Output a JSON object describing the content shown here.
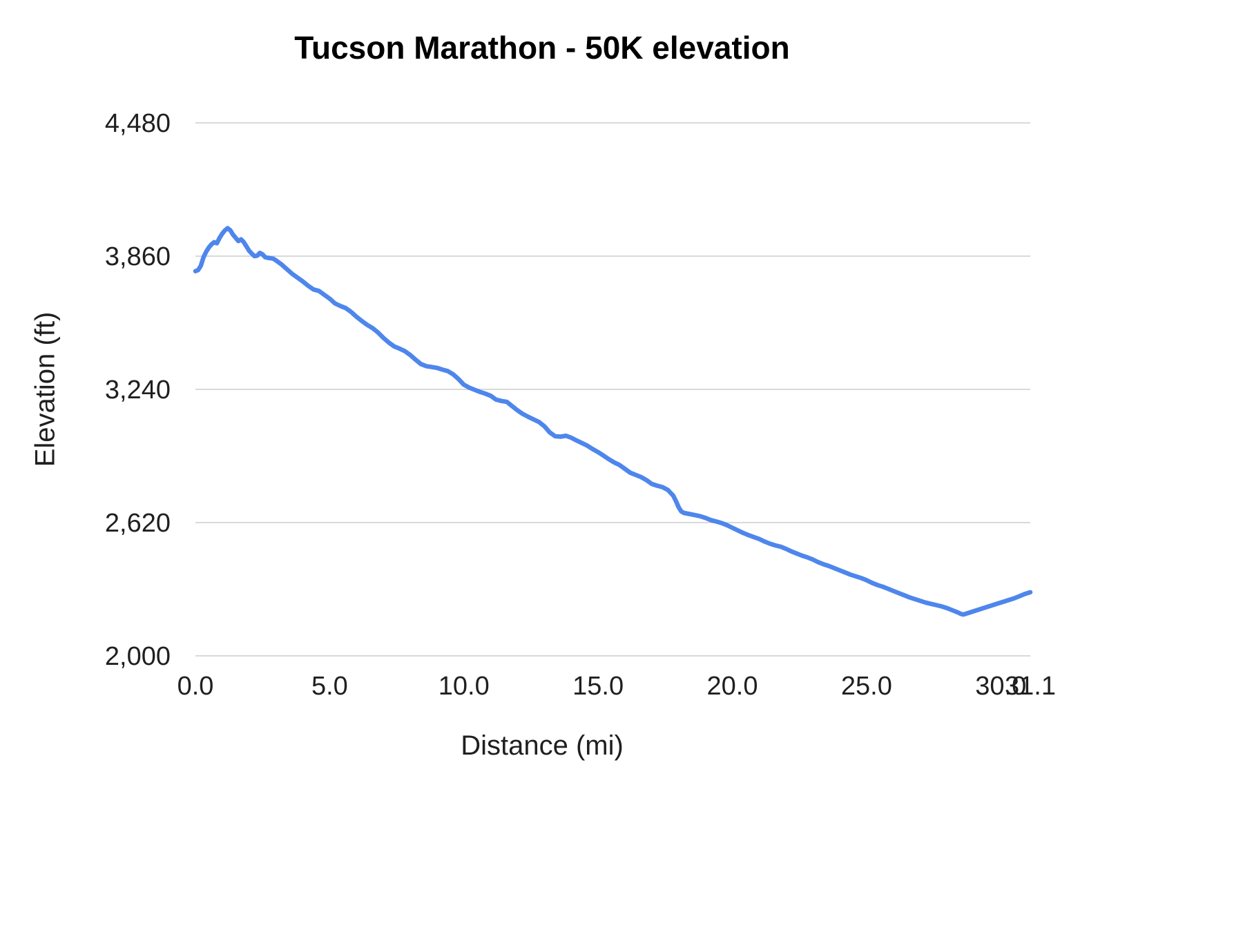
{
  "chart_data": {
    "type": "line",
    "title": "Tucson Marathon - 50K elevation",
    "xlabel": "Distance (mi)",
    "ylabel": "Elevation (ft)",
    "xlim": [
      0,
      31.1
    ],
    "ylim": [
      2000,
      4480
    ],
    "grid": "horizontal",
    "legend": "none",
    "line_color": "#4e86ec",
    "grid_color": "#d9d9d9",
    "tick_label_color": "#1f1f1f",
    "y_ticks": [
      {
        "value": 2000,
        "label": "2,000"
      },
      {
        "value": 2620,
        "label": "2,620"
      },
      {
        "value": 3240,
        "label": "3,240"
      },
      {
        "value": 3860,
        "label": "3,860"
      },
      {
        "value": 4480,
        "label": "4,480"
      }
    ],
    "x_ticks": [
      {
        "value": 0,
        "label": "0.0"
      },
      {
        "value": 5,
        "label": "5.0"
      },
      {
        "value": 10,
        "label": "10.0"
      },
      {
        "value": 15,
        "label": "15.0"
      },
      {
        "value": 20,
        "label": "20.0"
      },
      {
        "value": 25,
        "label": "25.0"
      },
      {
        "value": 30,
        "label": "30.0"
      },
      {
        "value": 31.1,
        "label": "31.1"
      }
    ],
    "series_name": "Elevation (ft)",
    "points": [
      [
        0.0,
        3790
      ],
      [
        0.1,
        3795
      ],
      [
        0.2,
        3815
      ],
      [
        0.3,
        3855
      ],
      [
        0.4,
        3880
      ],
      [
        0.5,
        3900
      ],
      [
        0.6,
        3915
      ],
      [
        0.7,
        3925
      ],
      [
        0.8,
        3920
      ],
      [
        0.9,
        3945
      ],
      [
        1.0,
        3965
      ],
      [
        1.1,
        3980
      ],
      [
        1.2,
        3990
      ],
      [
        1.3,
        3980
      ],
      [
        1.4,
        3960
      ],
      [
        1.5,
        3945
      ],
      [
        1.6,
        3930
      ],
      [
        1.7,
        3938
      ],
      [
        1.8,
        3925
      ],
      [
        1.9,
        3905
      ],
      [
        2.0,
        3885
      ],
      [
        2.1,
        3872
      ],
      [
        2.2,
        3860
      ],
      [
        2.3,
        3862
      ],
      [
        2.4,
        3875
      ],
      [
        2.5,
        3868
      ],
      [
        2.6,
        3855
      ],
      [
        2.7,
        3852
      ],
      [
        2.8,
        3850
      ],
      [
        2.9,
        3848
      ],
      [
        3.0,
        3840
      ],
      [
        3.2,
        3822
      ],
      [
        3.4,
        3800
      ],
      [
        3.6,
        3778
      ],
      [
        3.8,
        3760
      ],
      [
        4.0,
        3742
      ],
      [
        4.2,
        3722
      ],
      [
        4.4,
        3705
      ],
      [
        4.6,
        3698
      ],
      [
        4.8,
        3680
      ],
      [
        5.0,
        3662
      ],
      [
        5.2,
        3640
      ],
      [
        5.4,
        3628
      ],
      [
        5.6,
        3618
      ],
      [
        5.8,
        3600
      ],
      [
        6.0,
        3578
      ],
      [
        6.2,
        3558
      ],
      [
        6.4,
        3540
      ],
      [
        6.6,
        3525
      ],
      [
        6.8,
        3505
      ],
      [
        7.0,
        3480
      ],
      [
        7.2,
        3458
      ],
      [
        7.4,
        3440
      ],
      [
        7.6,
        3430
      ],
      [
        7.8,
        3418
      ],
      [
        8.0,
        3400
      ],
      [
        8.2,
        3378
      ],
      [
        8.4,
        3358
      ],
      [
        8.6,
        3348
      ],
      [
        8.8,
        3344
      ],
      [
        9.0,
        3340
      ],
      [
        9.2,
        3332
      ],
      [
        9.4,
        3325
      ],
      [
        9.6,
        3310
      ],
      [
        9.8,
        3288
      ],
      [
        10.0,
        3262
      ],
      [
        10.2,
        3248
      ],
      [
        10.4,
        3238
      ],
      [
        10.6,
        3228
      ],
      [
        10.8,
        3220
      ],
      [
        11.0,
        3210
      ],
      [
        11.2,
        3192
      ],
      [
        11.4,
        3186
      ],
      [
        11.6,
        3182
      ],
      [
        11.8,
        3162
      ],
      [
        12.0,
        3142
      ],
      [
        12.2,
        3125
      ],
      [
        12.4,
        3112
      ],
      [
        12.6,
        3100
      ],
      [
        12.8,
        3088
      ],
      [
        13.0,
        3068
      ],
      [
        13.2,
        3040
      ],
      [
        13.4,
        3022
      ],
      [
        13.6,
        3020
      ],
      [
        13.8,
        3024
      ],
      [
        14.0,
        3015
      ],
      [
        14.2,
        3002
      ],
      [
        14.4,
        2990
      ],
      [
        14.6,
        2978
      ],
      [
        14.8,
        2962
      ],
      [
        15.0,
        2948
      ],
      [
        15.2,
        2932
      ],
      [
        15.4,
        2915
      ],
      [
        15.6,
        2900
      ],
      [
        15.8,
        2888
      ],
      [
        16.0,
        2870
      ],
      [
        16.2,
        2852
      ],
      [
        16.4,
        2842
      ],
      [
        16.6,
        2832
      ],
      [
        16.8,
        2818
      ],
      [
        17.0,
        2800
      ],
      [
        17.2,
        2792
      ],
      [
        17.4,
        2785
      ],
      [
        17.6,
        2772
      ],
      [
        17.8,
        2745
      ],
      [
        17.9,
        2720
      ],
      [
        18.0,
        2692
      ],
      [
        18.1,
        2672
      ],
      [
        18.2,
        2665
      ],
      [
        18.4,
        2660
      ],
      [
        18.6,
        2655
      ],
      [
        18.8,
        2650
      ],
      [
        19.0,
        2642
      ],
      [
        19.2,
        2632
      ],
      [
        19.4,
        2625
      ],
      [
        19.6,
        2618
      ],
      [
        19.8,
        2608
      ],
      [
        20.0,
        2596
      ],
      [
        20.2,
        2584
      ],
      [
        20.4,
        2572
      ],
      [
        20.6,
        2562
      ],
      [
        20.8,
        2553
      ],
      [
        21.0,
        2544
      ],
      [
        21.2,
        2532
      ],
      [
        21.4,
        2522
      ],
      [
        21.6,
        2514
      ],
      [
        21.8,
        2508
      ],
      [
        22.0,
        2498
      ],
      [
        22.2,
        2486
      ],
      [
        22.4,
        2476
      ],
      [
        22.6,
        2466
      ],
      [
        22.8,
        2458
      ],
      [
        23.0,
        2448
      ],
      [
        23.2,
        2436
      ],
      [
        23.4,
        2426
      ],
      [
        23.6,
        2418
      ],
      [
        23.8,
        2408
      ],
      [
        24.0,
        2398
      ],
      [
        24.2,
        2388
      ],
      [
        24.4,
        2378
      ],
      [
        24.6,
        2370
      ],
      [
        24.8,
        2362
      ],
      [
        25.0,
        2352
      ],
      [
        25.2,
        2340
      ],
      [
        25.4,
        2330
      ],
      [
        25.6,
        2322
      ],
      [
        25.8,
        2312
      ],
      [
        26.0,
        2302
      ],
      [
        26.2,
        2292
      ],
      [
        26.4,
        2282
      ],
      [
        26.6,
        2272
      ],
      [
        26.8,
        2264
      ],
      [
        27.0,
        2256
      ],
      [
        27.2,
        2248
      ],
      [
        27.4,
        2242
      ],
      [
        27.6,
        2236
      ],
      [
        27.8,
        2230
      ],
      [
        28.0,
        2222
      ],
      [
        28.2,
        2212
      ],
      [
        28.4,
        2202
      ],
      [
        28.5,
        2196
      ],
      [
        28.6,
        2192
      ],
      [
        28.7,
        2196
      ],
      [
        28.9,
        2204
      ],
      [
        29.1,
        2212
      ],
      [
        29.3,
        2220
      ],
      [
        29.5,
        2228
      ],
      [
        29.7,
        2236
      ],
      [
        29.9,
        2244
      ],
      [
        30.1,
        2252
      ],
      [
        30.3,
        2260
      ],
      [
        30.5,
        2268
      ],
      [
        30.7,
        2278
      ],
      [
        30.9,
        2288
      ],
      [
        31.1,
        2296
      ]
    ]
  }
}
